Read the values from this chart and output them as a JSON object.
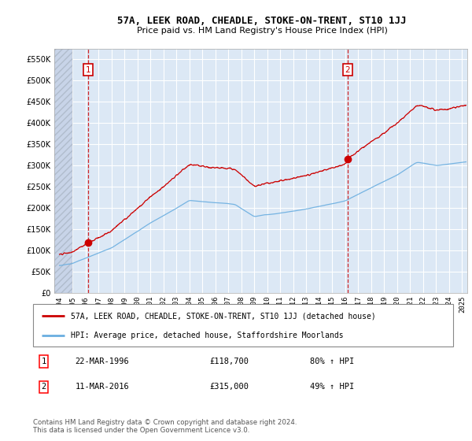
{
  "title": "57A, LEEK ROAD, CHEADLE, STOKE-ON-TRENT, ST10 1JJ",
  "subtitle": "Price paid vs. HM Land Registry's House Price Index (HPI)",
  "ylim": [
    0,
    575000
  ],
  "yticks": [
    0,
    50000,
    100000,
    150000,
    200000,
    250000,
    300000,
    350000,
    400000,
    450000,
    500000,
    550000
  ],
  "ytick_labels": [
    "£0",
    "£50K",
    "£100K",
    "£150K",
    "£200K",
    "£250K",
    "£300K",
    "£350K",
    "£400K",
    "£450K",
    "£500K",
    "£550K"
  ],
  "xlim_start": 1993.6,
  "xlim_end": 2025.4,
  "background_color": "#dce8f5",
  "hatch_color": "#c8d4e8",
  "grid_color": "#ffffff",
  "sale1_year": 1996.22,
  "sale1_price": 118700,
  "sale2_year": 2016.19,
  "sale2_price": 315000,
  "sale1_label": "1",
  "sale2_label": "2",
  "property_color": "#cc0000",
  "hpi_color": "#6aaee0",
  "legend_property": "57A, LEEK ROAD, CHEADLE, STOKE-ON-TRENT, ST10 1JJ (detached house)",
  "legend_hpi": "HPI: Average price, detached house, Staffordshire Moorlands",
  "note1_label": "1",
  "note1_date": "22-MAR-1996",
  "note1_price": "£118,700",
  "note1_hpi": "80% ↑ HPI",
  "note2_label": "2",
  "note2_date": "11-MAR-2016",
  "note2_price": "£315,000",
  "note2_hpi": "49% ↑ HPI",
  "copyright": "Contains HM Land Registry data © Crown copyright and database right 2024.\nThis data is licensed under the Open Government Licence v3.0."
}
